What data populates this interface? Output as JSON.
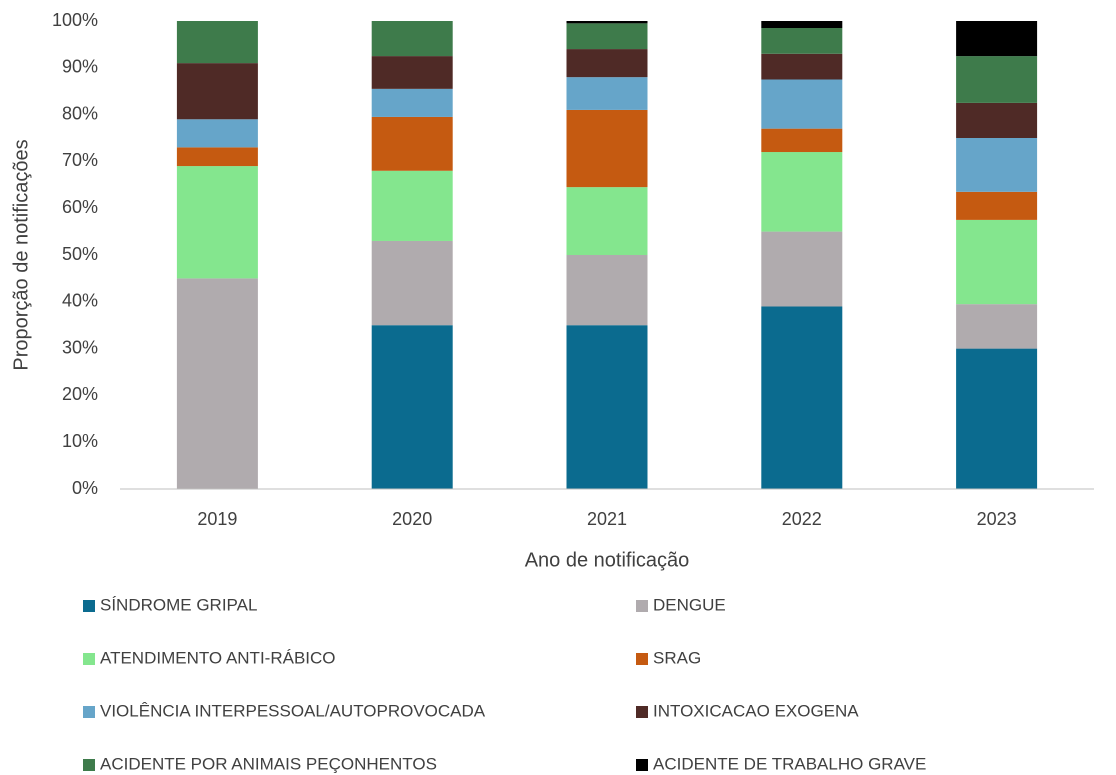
{
  "chart_data": {
    "type": "stacked_bar_100",
    "x_label": "Ano de notificação",
    "y_label": "Proporção de notificações",
    "categories": [
      "2019",
      "2020",
      "2021",
      "2022",
      "2023"
    ],
    "series": [
      {
        "name": "SÍNDROME GRIPAL",
        "color": "#0b6b8f",
        "values": [
          0,
          35,
          35,
          39,
          30
        ]
      },
      {
        "name": "DENGUE",
        "color": "#b0abae",
        "values": [
          45,
          18,
          15,
          16,
          9.5
        ]
      },
      {
        "name": "ATENDIMENTO ANTI-RÁBICO",
        "color": "#84e68e",
        "values": [
          24,
          15,
          14.5,
          17,
          18
        ]
      },
      {
        "name": "SRAG",
        "color": "#c55a11",
        "values": [
          4,
          11.5,
          16.5,
          5,
          6
        ]
      },
      {
        "name": "VIOLÊNCIA INTERPESSOAL/AUTOPROVOCADA",
        "color": "#66a5c9",
        "values": [
          6,
          6,
          7,
          10.5,
          11.5
        ]
      },
      {
        "name": "INTOXICACAO EXOGENA",
        "color": "#4f2a26",
        "values": [
          12,
          7,
          6,
          5.5,
          7.5
        ]
      },
      {
        "name": "ACIDENTE POR ANIMAIS PEÇONHENTOS",
        "color": "#3e7b4b",
        "values": [
          9,
          7.5,
          5.5,
          5.5,
          10
        ]
      },
      {
        "name": "ACIDENTE DE TRABALHO GRAVE",
        "color": "#000000",
        "values": [
          0,
          0,
          0.5,
          1.5,
          7.5
        ]
      }
    ],
    "ylim": [
      0,
      100
    ],
    "yticks": [
      {
        "value": 0,
        "label": "0%"
      },
      {
        "value": 10,
        "label": "10%"
      },
      {
        "value": 20,
        "label": "20%"
      },
      {
        "value": 30,
        "label": "30%"
      },
      {
        "value": 40,
        "label": "40%"
      },
      {
        "value": 50,
        "label": "50%"
      },
      {
        "value": 60,
        "label": "60%"
      },
      {
        "value": 70,
        "label": "70%"
      },
      {
        "value": 80,
        "label": "80%"
      },
      {
        "value": 90,
        "label": "90%"
      },
      {
        "value": 100,
        "label": "100%"
      }
    ],
    "grid": false,
    "legend": "bottom"
  }
}
